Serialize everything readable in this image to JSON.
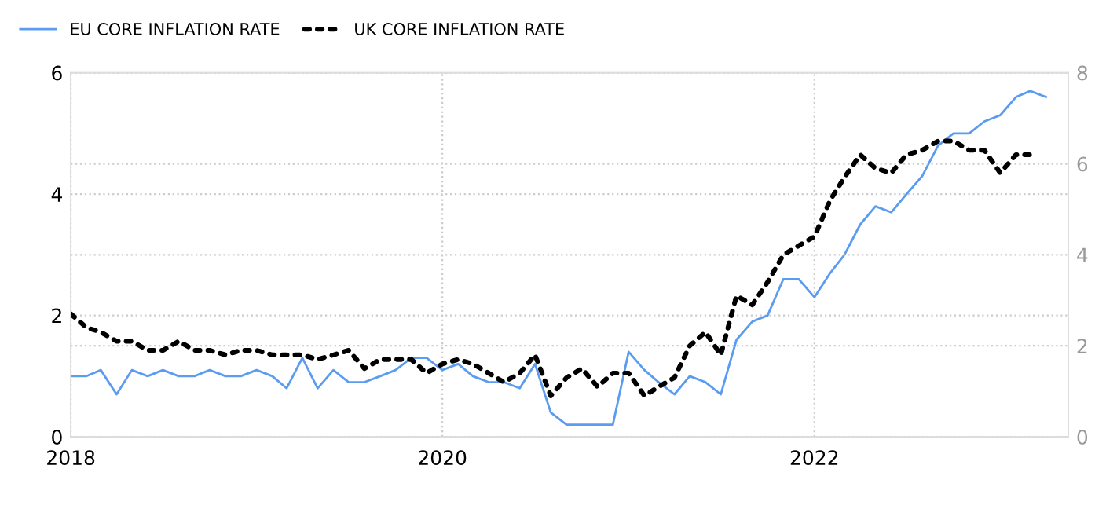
{
  "chart_data": {
    "type": "line",
    "legend": "top left",
    "grid": true,
    "x": [
      "2018-01",
      "2018-02",
      "2018-03",
      "2018-04",
      "2018-05",
      "2018-06",
      "2018-07",
      "2018-08",
      "2018-09",
      "2018-10",
      "2018-11",
      "2018-12",
      "2019-01",
      "2019-02",
      "2019-03",
      "2019-04",
      "2019-05",
      "2019-06",
      "2019-07",
      "2019-08",
      "2019-09",
      "2019-10",
      "2019-11",
      "2019-12",
      "2020-01",
      "2020-02",
      "2020-03",
      "2020-04",
      "2020-05",
      "2020-06",
      "2020-07",
      "2020-08",
      "2020-09",
      "2020-10",
      "2020-11",
      "2020-12",
      "2021-01",
      "2021-02",
      "2021-03",
      "2021-04",
      "2021-05",
      "2021-06",
      "2021-07",
      "2021-08",
      "2021-09",
      "2021-10",
      "2021-11",
      "2021-12",
      "2022-01",
      "2022-02",
      "2022-03",
      "2022-04",
      "2022-05",
      "2022-06",
      "2022-07",
      "2022-08",
      "2022-09",
      "2022-10",
      "2022-11",
      "2022-12",
      "2023-01",
      "2023-02",
      "2023-03",
      "2023-04"
    ],
    "series": [
      {
        "name": "EU CORE INFLATION RATE",
        "color": "#5b9cf0",
        "line_style": "solid",
        "values": [
          1.0,
          1.0,
          1.1,
          0.7,
          1.1,
          1.0,
          1.1,
          1.0,
          1.0,
          1.1,
          1.0,
          1.0,
          1.1,
          1.0,
          0.8,
          1.3,
          0.8,
          1.1,
          0.9,
          0.9,
          1.0,
          1.1,
          1.3,
          1.3,
          1.1,
          1.2,
          1.0,
          0.9,
          0.9,
          0.8,
          1.2,
          0.4,
          0.2,
          0.2,
          0.2,
          0.2,
          1.4,
          1.1,
          0.9,
          0.7,
          1.0,
          0.9,
          0.7,
          1.6,
          1.9,
          2.0,
          2.6,
          2.6,
          2.3,
          2.7,
          3.0,
          3.5,
          3.8,
          3.7,
          4.0,
          4.3,
          4.8,
          5.0,
          5.0,
          5.2,
          5.3,
          5.6,
          5.7,
          5.6
        ]
      },
      {
        "name": "UK CORE INFLATION RATE",
        "color": "#000000",
        "line_style": "dotted",
        "axis": "y2",
        "values": [
          2.7,
          2.4,
          2.3,
          2.1,
          2.1,
          1.9,
          1.9,
          2.1,
          1.9,
          1.9,
          1.8,
          1.9,
          1.9,
          1.8,
          1.8,
          1.8,
          1.7,
          1.8,
          1.9,
          1.5,
          1.7,
          1.7,
          1.7,
          1.4,
          1.6,
          1.7,
          1.6,
          1.4,
          1.2,
          1.4,
          1.8,
          0.9,
          1.3,
          1.5,
          1.1,
          1.4,
          1.4,
          0.9,
          1.1,
          1.3,
          2.0,
          2.3,
          1.8,
          3.1,
          2.9,
          3.4,
          4.0,
          4.2,
          4.4,
          5.2,
          5.7,
          6.2,
          5.9,
          5.8,
          6.2,
          6.3,
          6.5,
          6.5,
          6.3,
          6.3,
          5.8,
          6.2,
          6.2,
          null
        ]
      }
    ],
    "xlim": [
      "2018-01-01",
      "2023-05-15"
    ],
    "xticks": [
      {
        "value": "2018-01-01",
        "label": "2018"
      },
      {
        "value": "2020-01-01",
        "label": "2020"
      },
      {
        "value": "2022-01-01",
        "label": "2022"
      }
    ],
    "ylim": [
      0,
      6
    ],
    "yticks": [
      0,
      2,
      4,
      6
    ],
    "y2lim": [
      0,
      8
    ],
    "y2ticks": [
      0,
      2,
      4,
      6,
      8
    ]
  }
}
